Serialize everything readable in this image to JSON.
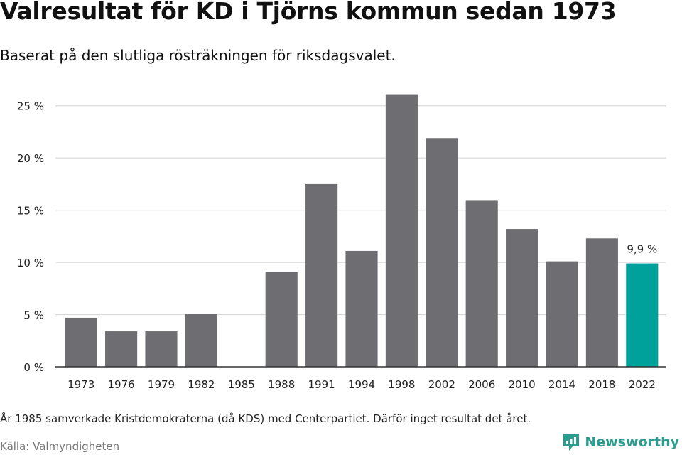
{
  "header": {
    "title": "Valresultat för KD i Tjörns kommun sedan 1973",
    "subtitle": "Baserat på den slutliga rösträkningen för riksdagsvalet."
  },
  "footer": {
    "note": "År 1985 samverkade Kristdemokraterna (då KDS) med Centerpartiet. Därför inget resultat det året.",
    "source": "Källa: Valmyndigheten",
    "brand": "Newsworthy",
    "brand_icon": "newsworthy-logo-icon"
  },
  "colors": {
    "bar": "#6e6d72",
    "highlight": "#00a19a",
    "grid": "#d9d9d9",
    "axis": "#333333",
    "brand": "#2a9d8f"
  },
  "chart_data": {
    "type": "bar",
    "title": "Valresultat för KD i Tjörns kommun sedan 1973",
    "subtitle": "Baserat på den slutliga rösträkningen för riksdagsvalet.",
    "categories": [
      "1973",
      "1976",
      "1979",
      "1982",
      "1985",
      "1988",
      "1991",
      "1994",
      "1998",
      "2002",
      "2006",
      "2010",
      "2014",
      "2018",
      "2022"
    ],
    "values": [
      4.7,
      3.4,
      3.4,
      5.1,
      null,
      9.1,
      17.5,
      11.1,
      26.1,
      21.9,
      15.9,
      13.2,
      10.1,
      12.3,
      9.9
    ],
    "highlight_index": 14,
    "data_labels": [
      {
        "category": "2022",
        "text": "9,9 %"
      }
    ],
    "yticks": [
      {
        "value": 0,
        "label": "0 %"
      },
      {
        "value": 5,
        "label": "5 %"
      },
      {
        "value": 10,
        "label": "10 %"
      },
      {
        "value": 15,
        "label": "15 %"
      },
      {
        "value": 20,
        "label": "20 %"
      },
      {
        "value": 25,
        "label": "25 %"
      }
    ],
    "ylim": [
      0,
      27.5
    ],
    "grid": true,
    "legend": "none"
  }
}
